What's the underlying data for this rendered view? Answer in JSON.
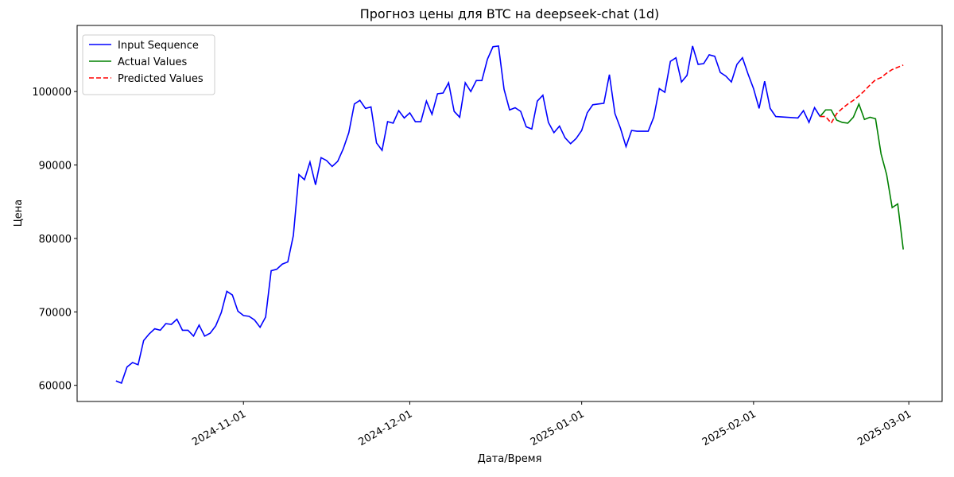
{
  "chart_data": {
    "type": "line",
    "title": "Прогноз цены для BTC на deepseek-chat (1d)",
    "xlabel": "Дата/Время",
    "ylabel": "Цена",
    "xlim": [
      "2024-10-02",
      "2025-03-07"
    ],
    "xticks": [
      "2024-11-01",
      "2024-12-01",
      "2025-01-01",
      "2025-02-01",
      "2025-03-01"
    ],
    "ylim": [
      57800,
      109000
    ],
    "yticks": [
      60000,
      70000,
      80000,
      90000,
      100000
    ],
    "legend": "upper left",
    "series": [
      {
        "name": "Input Sequence",
        "color": "#0000ff",
        "linestyle": "solid",
        "x": [
          "2024-10-09",
          "2024-10-10",
          "2024-10-11",
          "2024-10-12",
          "2024-10-13",
          "2024-10-14",
          "2024-10-15",
          "2024-10-16",
          "2024-10-17",
          "2024-10-18",
          "2024-10-19",
          "2024-10-20",
          "2024-10-21",
          "2024-10-22",
          "2024-10-23",
          "2024-10-24",
          "2024-10-25",
          "2024-10-26",
          "2024-10-27",
          "2024-10-28",
          "2024-10-29",
          "2024-10-30",
          "2024-10-31",
          "2024-11-01",
          "2024-11-02",
          "2024-11-03",
          "2024-11-04",
          "2024-11-05",
          "2024-11-06",
          "2024-11-07",
          "2024-11-08",
          "2024-11-09",
          "2024-11-10",
          "2024-11-11",
          "2024-11-12",
          "2024-11-13",
          "2024-11-14",
          "2024-11-15",
          "2024-11-16",
          "2024-11-17",
          "2024-11-18",
          "2024-11-19",
          "2024-11-20",
          "2024-11-21",
          "2024-11-22",
          "2024-11-23",
          "2024-11-24",
          "2024-11-25",
          "2024-11-26",
          "2024-11-27",
          "2024-11-28",
          "2024-11-29",
          "2024-11-30",
          "2024-12-01",
          "2024-12-02",
          "2024-12-03",
          "2024-12-04",
          "2024-12-05",
          "2024-12-06",
          "2024-12-07",
          "2024-12-08",
          "2024-12-09",
          "2024-12-10",
          "2024-12-11",
          "2024-12-12",
          "2024-12-13",
          "2024-12-14",
          "2024-12-15",
          "2024-12-16",
          "2024-12-17",
          "2024-12-18",
          "2024-12-19",
          "2024-12-20",
          "2024-12-21",
          "2024-12-22",
          "2024-12-23",
          "2024-12-24",
          "2024-12-25",
          "2024-12-26",
          "2024-12-27",
          "2024-12-28",
          "2024-12-29",
          "2024-12-30",
          "2024-12-31",
          "2025-01-01",
          "2025-01-02",
          "2025-01-03",
          "2025-01-04",
          "2025-01-05",
          "2025-01-06",
          "2025-01-07",
          "2025-01-08",
          "2025-01-09",
          "2025-01-10",
          "2025-01-11",
          "2025-01-12",
          "2025-01-13",
          "2025-01-14",
          "2025-01-15",
          "2025-01-16",
          "2025-01-17",
          "2025-01-18",
          "2025-01-19",
          "2025-01-20",
          "2025-01-21",
          "2025-01-22",
          "2025-01-23",
          "2025-01-24",
          "2025-01-25",
          "2025-01-26",
          "2025-01-27",
          "2025-01-28",
          "2025-01-29",
          "2025-01-30",
          "2025-01-31",
          "2025-02-01",
          "2025-02-02",
          "2025-02-03",
          "2025-02-04",
          "2025-02-05",
          "2025-02-09",
          "2025-02-10",
          "2025-02-11",
          "2025-02-12",
          "2025-02-13"
        ],
        "values": [
          60600,
          60300,
          62500,
          63100,
          62800,
          66100,
          67000,
          67700,
          67500,
          68400,
          68300,
          69000,
          67500,
          67500,
          66700,
          68200,
          66700,
          67100,
          68100,
          69900,
          72800,
          72300,
          70100,
          69500,
          69400,
          68900,
          67900,
          69300,
          75600,
          75800,
          76500,
          76800,
          80400,
          88700,
          88000,
          90400,
          87300,
          91000,
          90600,
          89800,
          90500,
          92200,
          94400,
          98300,
          98800,
          97700,
          97900,
          93000,
          92000,
          95900,
          95700,
          97400,
          96400,
          97100,
          95900,
          95900,
          98700,
          96900,
          99700,
          99800,
          101200,
          97300,
          96500,
          101200,
          100000,
          101500,
          101500,
          104400,
          106100,
          106200,
          100300,
          97500,
          97800,
          97300,
          95200,
          94900,
          98700,
          99500,
          95800,
          94400,
          95300,
          93700,
          92900,
          93600,
          94700,
          97100,
          98200,
          98300,
          98400,
          102300,
          97000,
          95000,
          92500,
          94700,
          94600,
          94600,
          94600,
          96500,
          100400,
          99900,
          104100,
          104600,
          101300,
          102200,
          106200,
          103700,
          103800,
          105000,
          104800,
          102600,
          102100,
          101300,
          103700,
          104600,
          102400,
          100400,
          97700,
          101400,
          97700,
          96600,
          96400,
          97400,
          95800,
          97800,
          96600
        ]
      },
      {
        "name": "Actual Values",
        "color": "#008000",
        "linestyle": "solid",
        "x": [
          "2025-02-13",
          "2025-02-14",
          "2025-02-15",
          "2025-02-16",
          "2025-02-17",
          "2025-02-18",
          "2025-02-19",
          "2025-02-20",
          "2025-02-21",
          "2025-02-22",
          "2025-02-23",
          "2025-02-24",
          "2025-02-25",
          "2025-02-26",
          "2025-02-27",
          "2025-02-28"
        ],
        "values": [
          96600,
          97500,
          97500,
          96100,
          95800,
          95700,
          96500,
          98300,
          96200,
          96500,
          96300,
          91500,
          88700,
          84200,
          84700,
          78500
        ]
      },
      {
        "name": "Predicted Values",
        "color": "#ff0000",
        "linestyle": "dashed",
        "x": [
          "2025-02-13",
          "2025-02-14",
          "2025-02-15",
          "2025-02-16",
          "2025-02-17",
          "2025-02-18",
          "2025-02-19",
          "2025-02-20",
          "2025-02-21",
          "2025-02-22",
          "2025-02-23",
          "2025-02-24",
          "2025-02-25",
          "2025-02-26",
          "2025-02-27",
          "2025-02-28"
        ],
        "values": [
          96600,
          96600,
          95700,
          97000,
          97700,
          98300,
          98800,
          99400,
          100100,
          100900,
          101600,
          101900,
          102500,
          103000,
          103300,
          103600
        ]
      }
    ]
  }
}
